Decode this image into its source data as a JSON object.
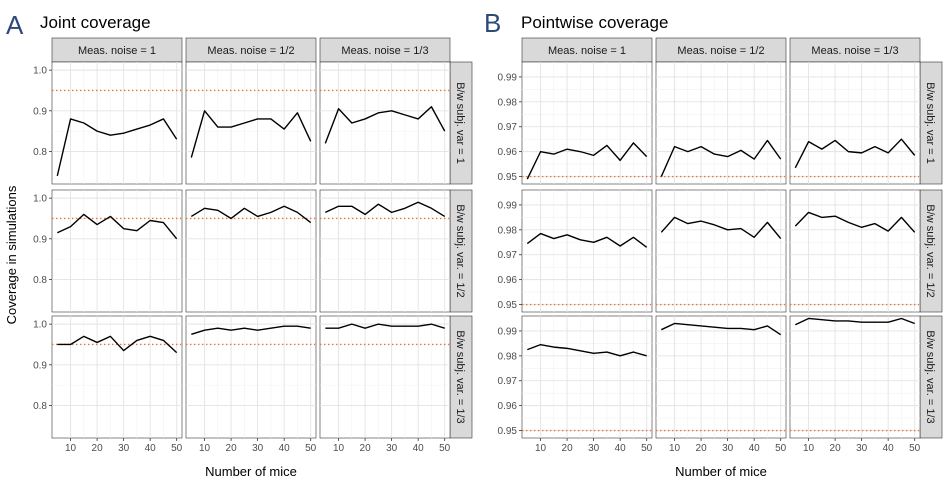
{
  "chart_data": [
    {
      "type": "line",
      "letter": "A",
      "title": "Joint coverage",
      "xlabel": "Number of mice",
      "ylabel": "Coverage in simulations",
      "col_facets": [
        "Meas. noise = 1",
        "Meas. noise = 1/2",
        "Meas. noise = 1/3"
      ],
      "row_facets": [
        "B/w subj. var = 1",
        "B/w subj. var. = 1/2",
        "B/w subj. var. = 1/3"
      ],
      "x": [
        5,
        10,
        15,
        20,
        25,
        30,
        35,
        40,
        45,
        50
      ],
      "xlim": [
        3,
        52
      ],
      "xticks": [
        10,
        20,
        30,
        40,
        50
      ],
      "ylim": [
        0.72,
        1.02
      ],
      "yticks": [
        0.8,
        0.9,
        1.0
      ],
      "ytick_labels": [
        "0.8",
        "0.9",
        "1.0"
      ],
      "reference_line": 0.95,
      "grid": true,
      "panels": [
        [
          [
            0.74,
            0.88,
            0.87,
            0.85,
            0.84,
            0.845,
            0.855,
            0.865,
            0.88,
            0.83
          ],
          [
            0.785,
            0.9,
            0.86,
            0.86,
            0.87,
            0.88,
            0.88,
            0.855,
            0.895,
            0.825
          ],
          [
            0.82,
            0.905,
            0.87,
            0.88,
            0.895,
            0.9,
            0.89,
            0.88,
            0.91,
            0.85
          ]
        ],
        [
          [
            0.915,
            0.93,
            0.96,
            0.935,
            0.955,
            0.925,
            0.92,
            0.945,
            0.94,
            0.9
          ],
          [
            0.955,
            0.975,
            0.97,
            0.95,
            0.975,
            0.955,
            0.965,
            0.98,
            0.965,
            0.94
          ],
          [
            0.965,
            0.98,
            0.98,
            0.96,
            0.985,
            0.965,
            0.975,
            0.99,
            0.975,
            0.955
          ]
        ],
        [
          [
            0.95,
            0.95,
            0.97,
            0.955,
            0.97,
            0.935,
            0.96,
            0.97,
            0.96,
            0.93
          ],
          [
            0.975,
            0.985,
            0.99,
            0.985,
            0.99,
            0.985,
            0.99,
            0.995,
            0.995,
            0.99
          ],
          [
            0.99,
            0.99,
            1.0,
            0.99,
            1.0,
            0.995,
            0.995,
            0.995,
            1.0,
            0.99
          ]
        ]
      ]
    },
    {
      "type": "line",
      "letter": "B",
      "title": "Pointwise coverage",
      "xlabel": "Number of mice",
      "ylabel": "",
      "col_facets": [
        "Meas. noise = 1",
        "Meas. noise = 1/2",
        "Meas. noise = 1/3"
      ],
      "row_facets": [
        "B/w subj. var = 1",
        "B/w subj. var. = 1/2",
        "B/w subj. var. = 1/3"
      ],
      "x": [
        5,
        10,
        15,
        20,
        25,
        30,
        35,
        40,
        45,
        50
      ],
      "xlim": [
        3,
        52
      ],
      "xticks": [
        10,
        20,
        30,
        40,
        50
      ],
      "ylim": [
        0.947,
        0.996
      ],
      "yticks": [
        0.95,
        0.96,
        0.97,
        0.98,
        0.99
      ],
      "ytick_labels": [
        "0.95",
        "0.96",
        "0.97",
        "0.98",
        "0.99"
      ],
      "reference_line": 0.95,
      "grid": true,
      "panels": [
        [
          [
            0.949,
            0.96,
            0.959,
            0.961,
            0.96,
            0.9585,
            0.9625,
            0.9565,
            0.9635,
            0.958
          ],
          [
            0.95,
            0.962,
            0.96,
            0.962,
            0.959,
            0.958,
            0.9605,
            0.957,
            0.9645,
            0.957
          ],
          [
            0.9535,
            0.964,
            0.961,
            0.9645,
            0.96,
            0.9595,
            0.962,
            0.9595,
            0.965,
            0.9585
          ]
        ],
        [
          [
            0.9745,
            0.9785,
            0.9765,
            0.978,
            0.976,
            0.975,
            0.977,
            0.9735,
            0.977,
            0.973
          ],
          [
            0.979,
            0.985,
            0.9825,
            0.9835,
            0.982,
            0.98,
            0.9805,
            0.977,
            0.983,
            0.9765
          ],
          [
            0.9815,
            0.987,
            0.985,
            0.9855,
            0.983,
            0.981,
            0.9825,
            0.9795,
            0.985,
            0.979
          ]
        ],
        [
          [
            0.9825,
            0.9845,
            0.9835,
            0.983,
            0.982,
            0.981,
            0.9815,
            0.98,
            0.9815,
            0.98
          ],
          [
            0.9905,
            0.993,
            0.9925,
            0.992,
            0.9915,
            0.991,
            0.991,
            0.9905,
            0.992,
            0.9885
          ],
          [
            0.9925,
            0.995,
            0.9945,
            0.994,
            0.994,
            0.9935,
            0.9935,
            0.9935,
            0.995,
            0.993
          ]
        ]
      ]
    }
  ]
}
